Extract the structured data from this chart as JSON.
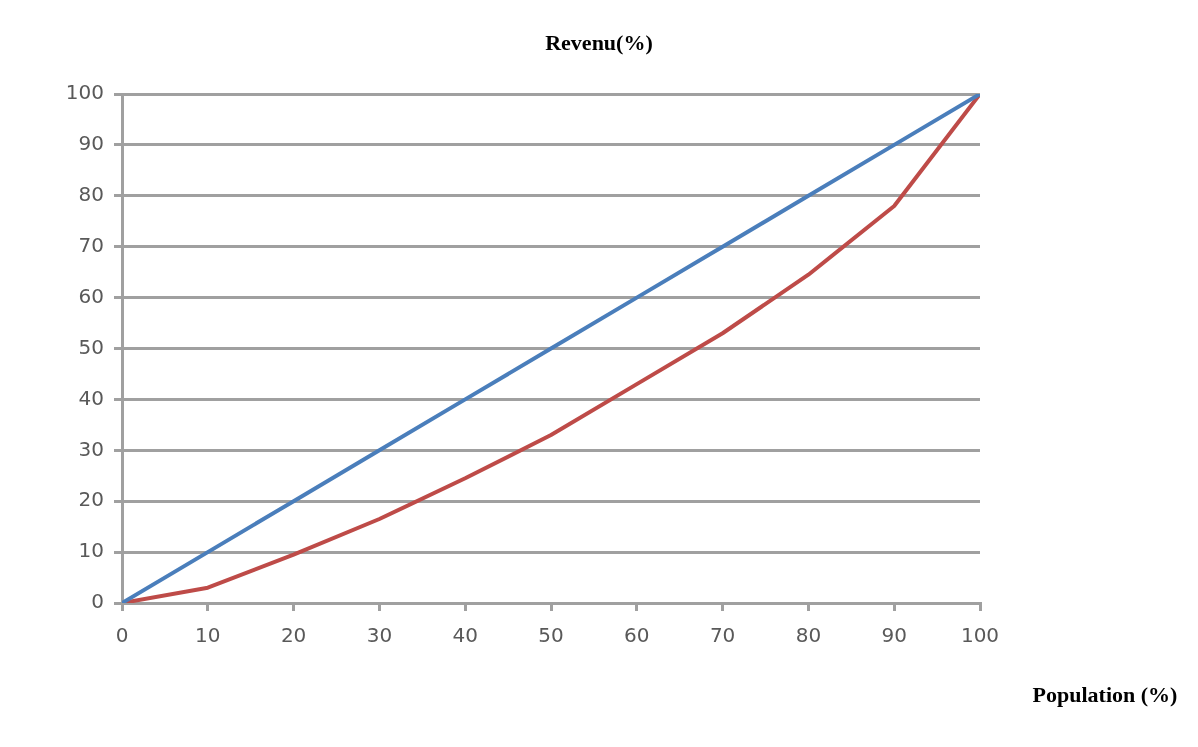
{
  "chart_data": {
    "type": "line",
    "ylabel": "Revenu(%)",
    "xlabel": "Population (%)",
    "xlim": [
      0,
      100
    ],
    "ylim": [
      0,
      100
    ],
    "xticks": [
      0,
      10,
      20,
      30,
      40,
      50,
      60,
      70,
      80,
      90,
      100
    ],
    "yticks": [
      0,
      10,
      20,
      30,
      40,
      50,
      60,
      70,
      80,
      90,
      100
    ],
    "grid": "y",
    "marker": "none",
    "line_style": "solid",
    "series": [
      {
        "color": "#4a7ebb",
        "x": [
          0,
          10,
          20,
          30,
          40,
          50,
          60,
          70,
          80,
          90,
          100
        ],
        "values": [
          0,
          10,
          20,
          30,
          40,
          50,
          60,
          70,
          80,
          90,
          100
        ]
      },
      {
        "color": "#be4b48",
        "x": [
          0,
          10,
          20,
          30,
          40,
          50,
          60,
          70,
          80,
          90,
          100
        ],
        "values": [
          0,
          3,
          9.5,
          16.5,
          24.5,
          33,
          43,
          53,
          64.5,
          78,
          100
        ]
      }
    ]
  }
}
